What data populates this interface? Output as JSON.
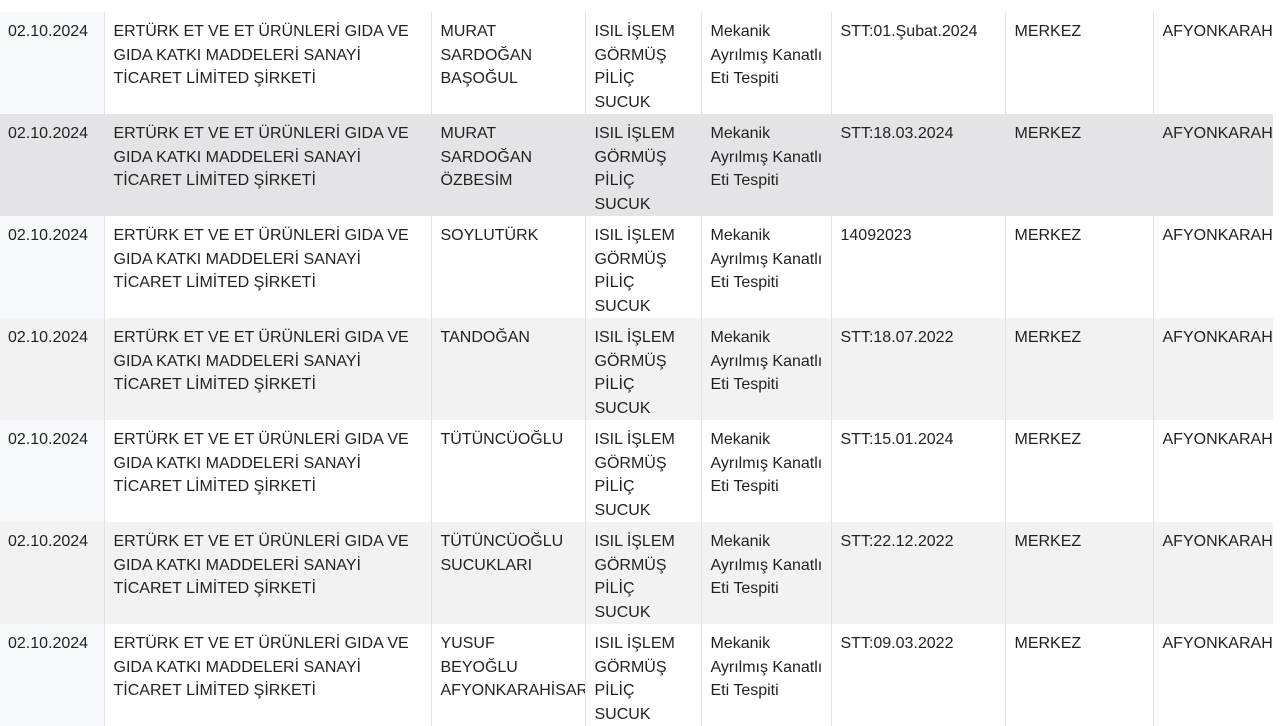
{
  "table": {
    "rows": [
      {
        "date": "02.10.2024",
        "company": "ERTÜRK ET VE ET ÜRÜNLERİ GIDA VE GIDA KATKI MADDELERİ SANAYİ TİCARET LİMİTED ŞİRKETİ",
        "brand": "MURAT SARDOĞAN BAŞOĞUL",
        "product": "ISIL İŞLEM GÖRMÜŞ PİLİÇ SUCUK",
        "finding": "Mekanik Ayrılmış Kanatlı Eti Tespiti",
        "batch": "STT:01.Şubat.2024",
        "district": "MERKEZ",
        "province": "AFYONKARAHİSAR"
      },
      {
        "date": "02.10.2024",
        "company": "ERTÜRK ET VE ET ÜRÜNLERİ GIDA VE GIDA KATKI MADDELERİ SANAYİ TİCARET LİMİTED ŞİRKETİ",
        "brand": "MURAT SARDOĞAN ÖZBESİM",
        "product": "ISIL İŞLEM GÖRMÜŞ PİLİÇ SUCUK",
        "finding": "Mekanik Ayrılmış Kanatlı Eti Tespiti",
        "batch": "STT:18.03.2024",
        "district": "MERKEZ",
        "province": "AFYONKARAHİSAR"
      },
      {
        "date": "02.10.2024",
        "company": "ERTÜRK ET VE ET ÜRÜNLERİ GIDA VE GIDA KATKI MADDELERİ SANAYİ TİCARET LİMİTED ŞİRKETİ",
        "brand": "SOYLUTÜRK",
        "product": "ISIL İŞLEM GÖRMÜŞ PİLİÇ SUCUK",
        "finding": "Mekanik Ayrılmış Kanatlı Eti Tespiti",
        "batch": "14092023",
        "district": "MERKEZ",
        "province": "AFYONKARAHİSAR"
      },
      {
        "date": "02.10.2024",
        "company": "ERTÜRK ET VE ET ÜRÜNLERİ GIDA VE GIDA KATKI MADDELERİ SANAYİ TİCARET LİMİTED ŞİRKETİ",
        "brand": "TANDOĞAN",
        "product": "ISIL İŞLEM GÖRMÜŞ PİLİÇ SUCUK",
        "finding": "Mekanik Ayrılmış Kanatlı Eti Tespiti",
        "batch": "STT:18.07.2022",
        "district": "MERKEZ",
        "province": "AFYONKARAHİSAR"
      },
      {
        "date": "02.10.2024",
        "company": "ERTÜRK ET VE ET ÜRÜNLERİ GIDA VE GIDA KATKI MADDELERİ SANAYİ TİCARET LİMİTED ŞİRKETİ",
        "brand": "TÜTÜNCÜOĞLU",
        "product": "ISIL İŞLEM GÖRMÜŞ PİLİÇ SUCUK",
        "finding": "Mekanik Ayrılmış Kanatlı Eti Tespiti",
        "batch": "STT:15.01.2024",
        "district": "MERKEZ",
        "province": "AFYONKARAHİSAR"
      },
      {
        "date": "02.10.2024",
        "company": "ERTÜRK ET VE ET ÜRÜNLERİ GIDA VE GIDA KATKI MADDELERİ SANAYİ TİCARET LİMİTED ŞİRKETİ",
        "brand": "TÜTÜNCÜOĞLU SUCUKLARI",
        "product": "ISIL İŞLEM GÖRMÜŞ PİLİÇ SUCUK",
        "finding": "Mekanik Ayrılmış Kanatlı Eti Tespiti",
        "batch": "STT:22.12.2022",
        "district": "MERKEZ",
        "province": "AFYONKARAHİSAR"
      },
      {
        "date": "02.10.2024",
        "company": "ERTÜRK ET VE ET ÜRÜNLERİ GIDA VE GIDA KATKI MADDELERİ SANAYİ TİCARET LİMİTED ŞİRKETİ",
        "brand": "YUSUF BEYOĞLU AFYONKARAHİSAR",
        "product": "ISIL İŞLEM GÖRMÜŞ PİLİÇ SUCUK",
        "finding": "Mekanik Ayrılmış Kanatlı Eti Tespiti",
        "batch": "STT:09.03.2022",
        "district": "MERKEZ",
        "province": "AFYONKARAHİSAR"
      }
    ]
  }
}
